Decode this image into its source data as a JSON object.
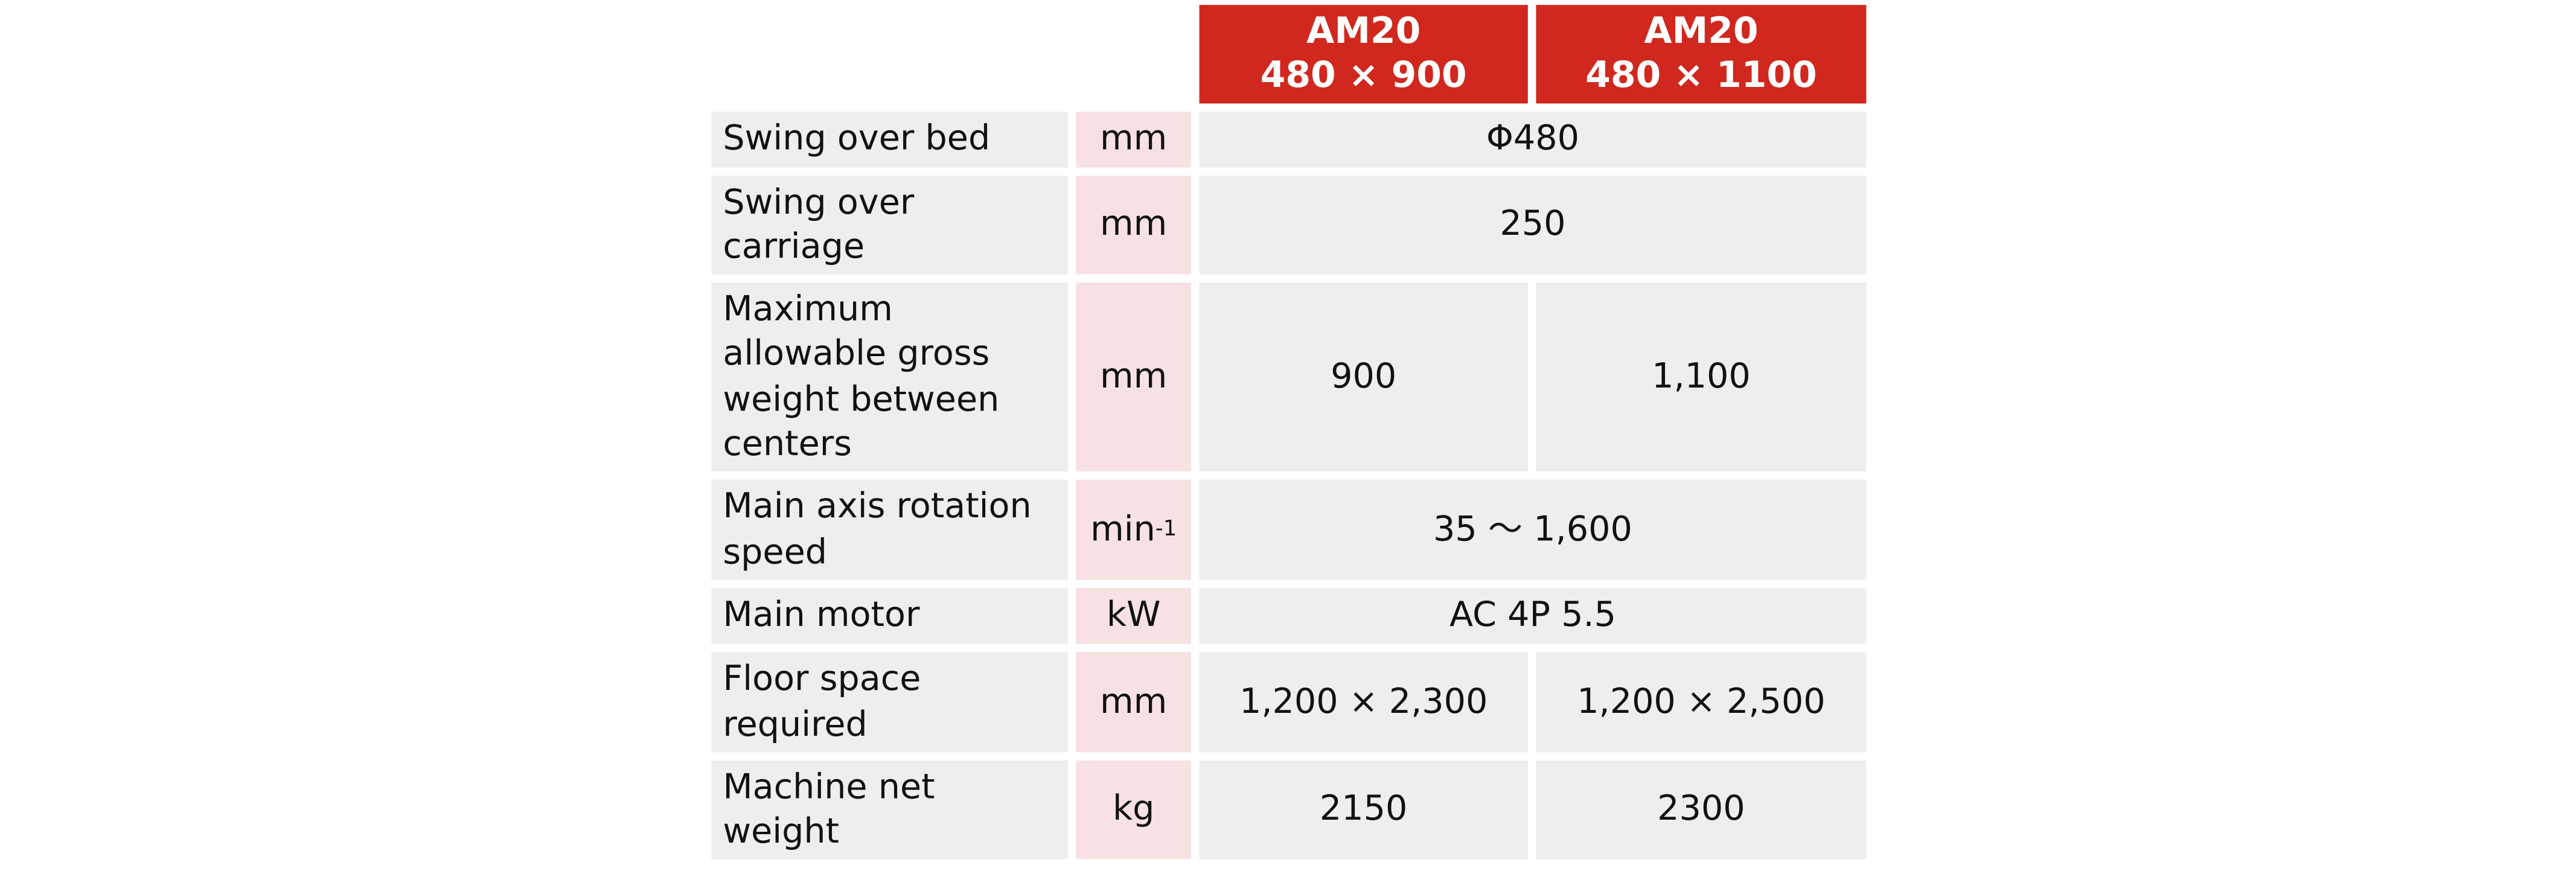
{
  "header": {
    "columns": [
      {
        "model": "AM20",
        "size": "480 × 900"
      },
      {
        "model": "AM20",
        "size": "480 × 1100"
      }
    ]
  },
  "table": {
    "rows": [
      {
        "label": [
          "Swing over bed"
        ],
        "unit": "mm",
        "values": [
          "Φ480"
        ]
      },
      {
        "label": [
          "Swing over",
          "carriage"
        ],
        "unit": "mm",
        "values": [
          "250"
        ]
      },
      {
        "label": [
          "Maximum",
          "allowable gross",
          "weight between",
          "centers"
        ],
        "unit": "mm",
        "values": [
          "900",
          "1,100"
        ]
      },
      {
        "label": [
          "Main axis rotation",
          "speed"
        ],
        "unit": "min",
        "unit_sup": "-1",
        "values": [
          "35 ～ 1,600"
        ]
      },
      {
        "label": [
          "Main motor"
        ],
        "unit": "kW",
        "values": [
          "AC 4P 5.5"
        ]
      },
      {
        "label": [
          "Floor space",
          "required"
        ],
        "unit": "mm",
        "values": [
          "1,200 × 2,300",
          "1,200 × 2,500"
        ]
      },
      {
        "label": [
          "Machine net",
          "weight"
        ],
        "unit": "kg",
        "values": [
          "2150",
          "2300"
        ]
      }
    ]
  }
}
